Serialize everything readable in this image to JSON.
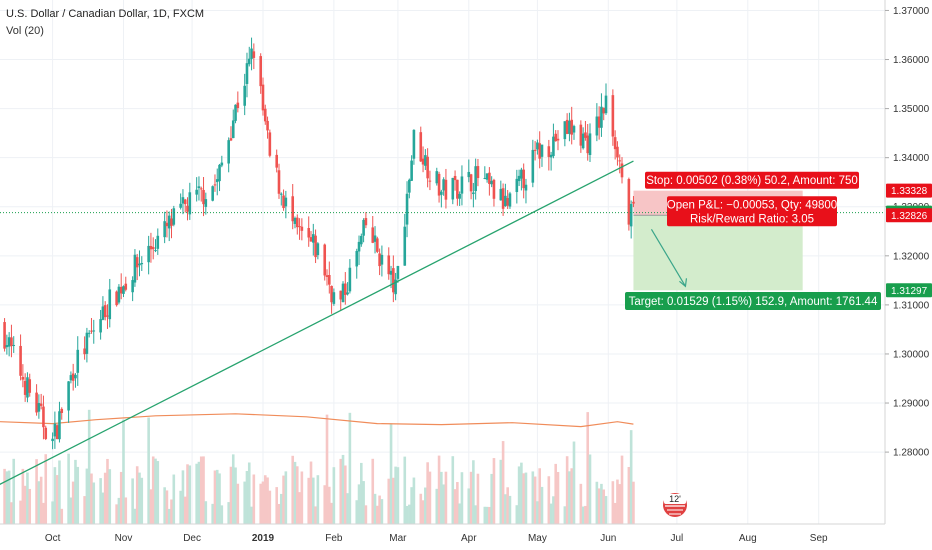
{
  "header": {
    "symbol_title": "U.S. Dollar / Canadian Dollar, 1D, FXCM",
    "volume_label": "Vol (20)"
  },
  "price_axis": {
    "labels": [
      "1.37000",
      "1.36000",
      "1.35000",
      "1.34000",
      "1.33000",
      "1.32000",
      "1.31000",
      "1.30000",
      "1.29000",
      "1.28000"
    ],
    "tags": [
      {
        "value": "1.33328",
        "color": "#e8101a"
      },
      {
        "value": "1.32879",
        "color": "#189e4d"
      },
      {
        "value": "1.32826",
        "color": "#e8101a"
      },
      {
        "value": "1.31297",
        "color": "#189e4d"
      }
    ]
  },
  "time_axis": {
    "labels": [
      "Oct",
      "Nov",
      "Dec",
      "2019",
      "Feb",
      "Mar",
      "Apr",
      "May",
      "Jun",
      "Jul",
      "Aug",
      "Sep"
    ]
  },
  "position": {
    "stop_text": "Stop: 0.00502 (0.38%) 50.2, Amount: 750",
    "open_pl_text": "Open P&L: −0.00053, Qty: 49800",
    "rr_text": "Risk/Reward Ratio: 3.05",
    "target_text": "Target: 0.01529 (1.15%) 152.9, Amount: 1761.44",
    "entry": 1.32826,
    "stop": 1.33328,
    "target": 1.31297,
    "current": 1.32879,
    "colors": {
      "loss": "#e8101a",
      "profit": "#189e4d",
      "loss_zone": "#f7c5c6",
      "profit_zone": "#d3eccc"
    }
  },
  "chart_data": {
    "type": "candlestick",
    "title": "U.S. Dollar / Canadian Dollar, 1D, FXCM",
    "indicator": "Vol (20)",
    "ylim": [
      1.2735,
      1.3705
    ],
    "x_range": [
      "2018-09-08",
      "2019-09-30"
    ],
    "trendline": {
      "from": [
        "2018-09-04",
        1.2725
      ],
      "to": [
        "2019-06-12",
        1.3393
      ]
    },
    "price_path": [
      [
        "2018-09-08",
        1.306
      ],
      [
        "2018-09-20",
        1.293
      ],
      [
        "2018-10-01",
        1.282
      ],
      [
        "2018-10-10",
        1.297
      ],
      [
        "2018-10-25",
        1.31
      ],
      [
        "2018-11-10",
        1.32
      ],
      [
        "2018-11-28",
        1.33
      ],
      [
        "2018-12-12",
        1.335
      ],
      [
        "2018-12-20",
        1.35
      ],
      [
        "2018-12-28",
        1.362
      ],
      [
        "2019-01-04",
        1.34
      ],
      [
        "2019-01-15",
        1.325
      ],
      [
        "2019-01-25",
        1.321
      ],
      [
        "2019-02-03",
        1.309
      ],
      [
        "2019-02-15",
        1.326
      ],
      [
        "2019-02-28",
        1.313
      ],
      [
        "2019-03-08",
        1.344
      ],
      [
        "2019-03-20",
        1.333
      ],
      [
        "2019-04-05",
        1.336
      ],
      [
        "2019-04-18",
        1.33
      ],
      [
        "2019-05-01",
        1.341
      ],
      [
        "2019-05-15",
        1.346
      ],
      [
        "2019-05-24",
        1.343
      ],
      [
        "2019-05-31",
        1.351
      ],
      [
        "2019-06-05",
        1.342
      ],
      [
        "2019-06-10",
        1.327
      ],
      [
        "2019-06-12",
        1.3288
      ]
    ],
    "volume_ma": [
      [
        "2018-09-08",
        1.2862
      ],
      [
        "2018-10-01",
        1.2858
      ],
      [
        "2018-10-20",
        1.2866
      ],
      [
        "2018-11-15",
        1.2874
      ],
      [
        "2018-12-20",
        1.2878
      ],
      [
        "2019-01-20",
        1.2872
      ],
      [
        "2019-02-20",
        1.2858
      ],
      [
        "2019-03-20",
        1.2856
      ],
      [
        "2019-04-20",
        1.286
      ],
      [
        "2019-05-20",
        1.2852
      ],
      [
        "2019-06-05",
        1.2862
      ],
      [
        "2019-06-12",
        1.2857
      ]
    ],
    "series": [
      {
        "name": "Vol (20)",
        "color": "#f08c5a"
      }
    ],
    "colors": {
      "up": "#26a69a",
      "down": "#ef5350",
      "up_vol": "#bfe3d9",
      "down_vol": "#f6c7c6",
      "trendline": "#27a36e"
    }
  }
}
